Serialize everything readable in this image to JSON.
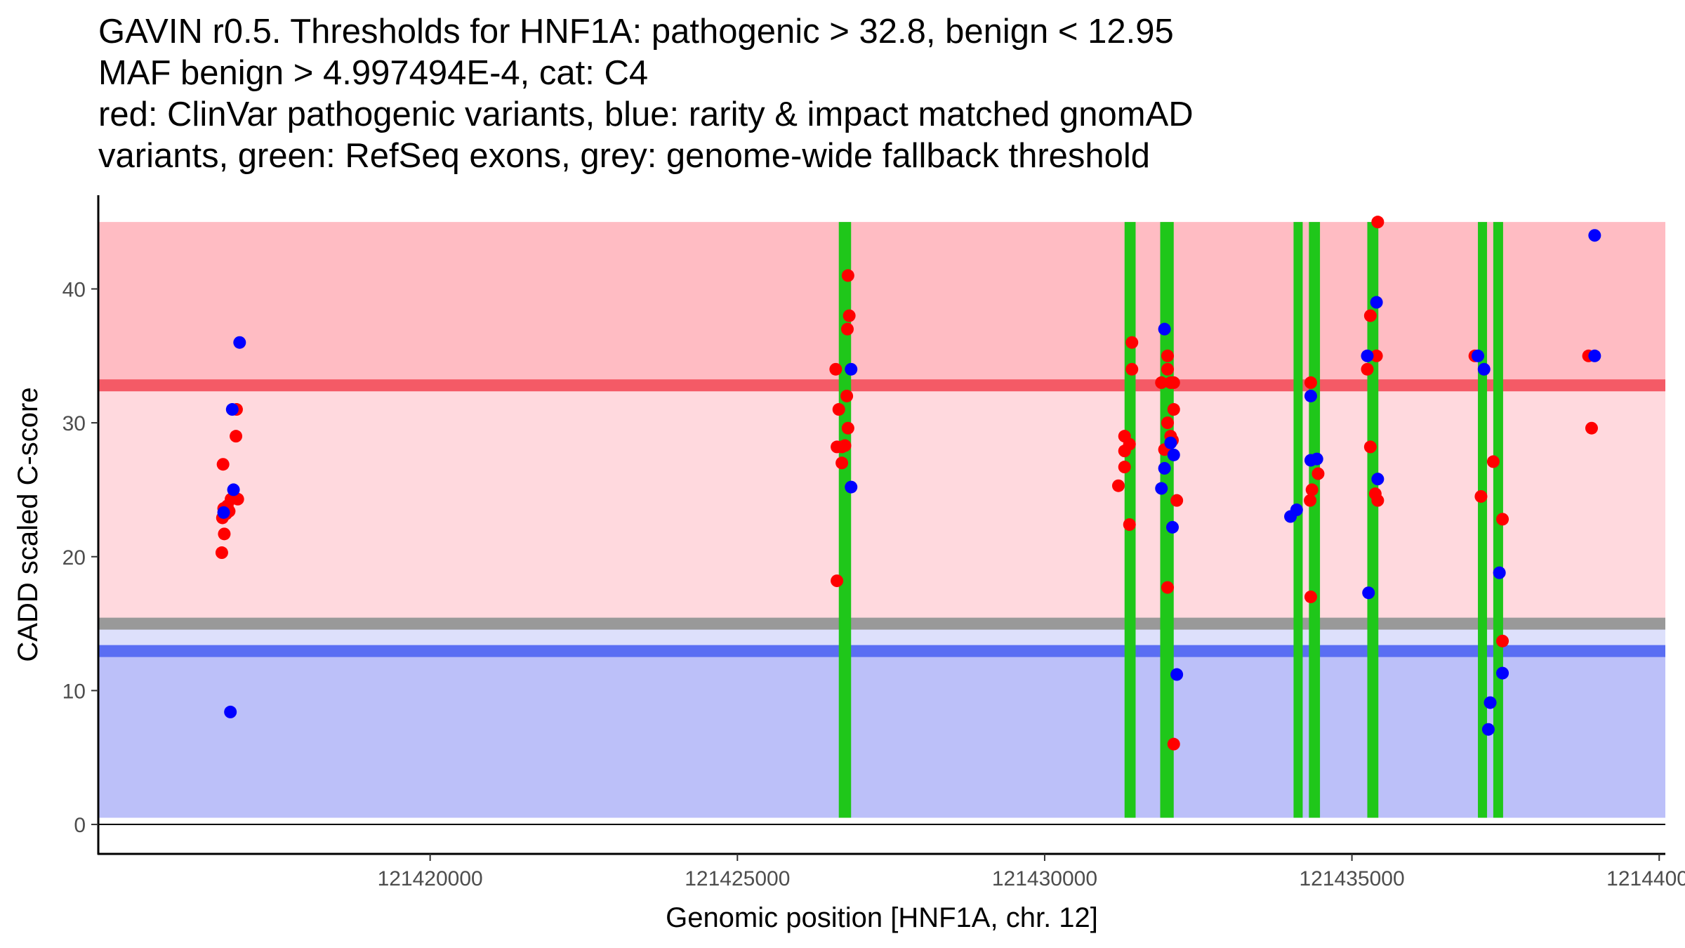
{
  "title_lines": [
    "GAVIN r0.5. Thresholds for HNF1A: pathogenic > 32.8, benign < 12.95",
    "MAF benign > 4.997494E-4, cat: C4",
    "red: ClinVar pathogenic variants, blue: rarity & impact matched gnomAD",
    "variants, green: RefSeq exons, grey: genome-wide fallback threshold"
  ],
  "colors": {
    "pathogenic_region": "#ffbcc3",
    "middle_region": "#ffd9de",
    "benign_region": "#bcc0f9",
    "between_benign_grey": "#dde0fb",
    "pathogenic_line": "#f45a66",
    "benign_line": "#5a6ef3",
    "fallback_line": "#999999",
    "exon": "#1fc71a",
    "clinvar_point": "#ff0000",
    "gnomad_point": "#0000ff"
  },
  "chart_data": {
    "type": "scatter",
    "xlabel": "Genomic position [HNF1A, chr. 12]",
    "ylabel": "CADD scaled C-score",
    "xlim": [
      121414600,
      121440100
    ],
    "ylim": [
      -2.2,
      47.0
    ],
    "x_ticks": [
      121420000,
      121425000,
      121430000,
      121435000,
      121440000
    ],
    "x_tick_labels": [
      "121420000",
      "121425000",
      "121430000",
      "121435000",
      "121440000"
    ],
    "y_ticks": [
      0,
      10,
      20,
      30,
      40
    ],
    "y_tick_labels": [
      "0",
      "10",
      "20",
      "30",
      "40"
    ],
    "thresholds": {
      "pathogenic": 32.8,
      "benign": 12.95,
      "fallback": 15
    },
    "regions": {
      "x_range": [
        121414600,
        121440100
      ],
      "benign": [
        0.5,
        12.95
      ],
      "between": [
        12.95,
        15
      ],
      "middle": [
        15,
        32.8
      ],
      "pathogenic": [
        32.8,
        45
      ]
    },
    "exons": [
      [
        121426650,
        121426850
      ],
      [
        121431300,
        121431480
      ],
      [
        121431880,
        121432100
      ],
      [
        121434050,
        121434180
      ],
      [
        121434300,
        121434480
      ],
      [
        121435250,
        121435430
      ],
      [
        121437050,
        121437150
      ],
      [
        121437300,
        121437460
      ]
    ],
    "series": [
      {
        "name": "ClinVar pathogenic variants",
        "color": "red",
        "points": [
          [
            121416630,
            26.9
          ],
          [
            121416640,
            23.6
          ],
          [
            121416620,
            22.9
          ],
          [
            121416650,
            21.7
          ],
          [
            121416610,
            20.3
          ],
          [
            121416700,
            23.8
          ],
          [
            121416730,
            23.4
          ],
          [
            121416760,
            24.3
          ],
          [
            121416840,
            29.0
          ],
          [
            121416850,
            31.0
          ],
          [
            121416870,
            24.3
          ],
          [
            121416680,
            23.2
          ],
          [
            121426600,
            34.0
          ],
          [
            121426650,
            31.0
          ],
          [
            121426700,
            28.2
          ],
          [
            121426620,
            28.2
          ],
          [
            121426750,
            28.3
          ],
          [
            121426700,
            27.0
          ],
          [
            121426780,
            32.0
          ],
          [
            121426800,
            29.6
          ],
          [
            121426800,
            41.0
          ],
          [
            121426820,
            38.0
          ],
          [
            121426790,
            37.0
          ],
          [
            121426620,
            18.2
          ],
          [
            121431420,
            36.0
          ],
          [
            121431420,
            34.0
          ],
          [
            121431300,
            29.0
          ],
          [
            121431300,
            26.7
          ],
          [
            121431300,
            27.9
          ],
          [
            121431380,
            28.4
          ],
          [
            121431200,
            25.3
          ],
          [
            121431380,
            22.4
          ],
          [
            121432000,
            35.0
          ],
          [
            121432000,
            34.0
          ],
          [
            121432050,
            33.0
          ],
          [
            121431900,
            33.0
          ],
          [
            121432000,
            30.0
          ],
          [
            121431950,
            28.0
          ],
          [
            121432050,
            29.0
          ],
          [
            121432100,
            31.0
          ],
          [
            121432080,
            28.7
          ],
          [
            121432100,
            33.0
          ],
          [
            121432000,
            17.7
          ],
          [
            121432150,
            24.2
          ],
          [
            121432100,
            6.0
          ],
          [
            121434330,
            33.0
          ],
          [
            121434350,
            25.0
          ],
          [
            121434320,
            24.2
          ],
          [
            121434330,
            17.0
          ],
          [
            121434450,
            26.2
          ],
          [
            121435300,
            38.0
          ],
          [
            121435250,
            34.0
          ],
          [
            121435400,
            35.0
          ],
          [
            121435300,
            28.2
          ],
          [
            121435380,
            24.7
          ],
          [
            121435420,
            24.2
          ],
          [
            121435420,
            45.0
          ],
          [
            121437000,
            35.0
          ],
          [
            121437100,
            24.5
          ],
          [
            121437300,
            27.1
          ],
          [
            121437450,
            22.8
          ],
          [
            121437450,
            13.7
          ],
          [
            121438850,
            35.0
          ],
          [
            121438900,
            29.6
          ]
        ]
      },
      {
        "name": "rarity & impact matched gnomAD variants",
        "color": "blue",
        "points": [
          [
            121416900,
            36.0
          ],
          [
            121416780,
            31.0
          ],
          [
            121416800,
            25.0
          ],
          [
            121416640,
            23.3
          ],
          [
            121416750,
            8.4
          ],
          [
            121426850,
            34.0
          ],
          [
            121426850,
            25.2
          ],
          [
            121431950,
            37.0
          ],
          [
            121432050,
            28.5
          ],
          [
            121432100,
            27.6
          ],
          [
            121431950,
            26.6
          ],
          [
            121431900,
            25.1
          ],
          [
            121432080,
            22.2
          ],
          [
            121432150,
            11.2
          ],
          [
            121434000,
            23.0
          ],
          [
            121434100,
            23.5
          ],
          [
            121434330,
            32.0
          ],
          [
            121434330,
            27.2
          ],
          [
            121434430,
            27.3
          ],
          [
            121435400,
            39.0
          ],
          [
            121435250,
            35.0
          ],
          [
            121435420,
            25.8
          ],
          [
            121435270,
            17.3
          ],
          [
            121437050,
            35.0
          ],
          [
            121437150,
            34.0
          ],
          [
            121437400,
            18.8
          ],
          [
            121437450,
            11.3
          ],
          [
            121437250,
            9.1
          ],
          [
            121437220,
            7.1
          ],
          [
            121438950,
            44.0
          ],
          [
            121438950,
            35.0
          ]
        ]
      }
    ]
  }
}
